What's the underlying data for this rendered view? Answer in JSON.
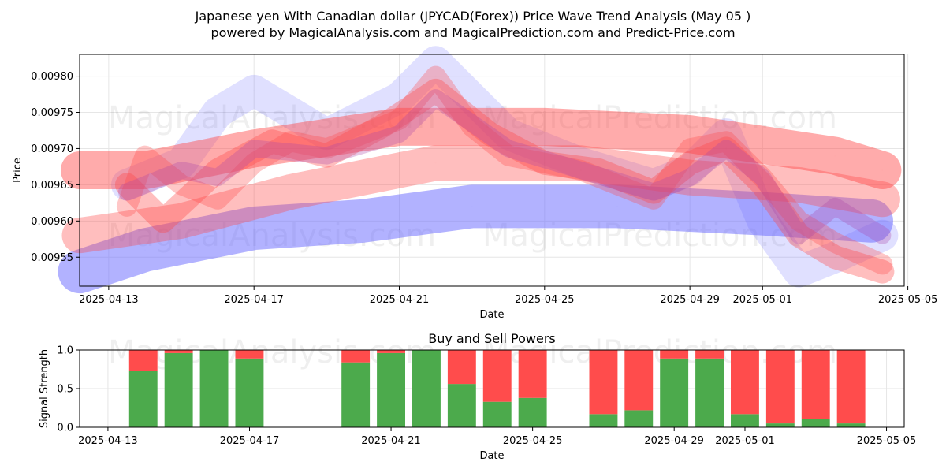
{
  "chart_data": [
    {
      "type": "line",
      "title": "Japanese yen With Canadian dollar (JPYCAD(Forex)) Price Wave Trend Analysis (May 05 )",
      "subtitle": "powered by MagicalAnalysis.com and MagicalPrediction.com and Predict-Price.com",
      "xlabel": "Date",
      "ylabel": "Price",
      "xlim": [
        -0.8,
        21.9
      ],
      "ylim": [
        0.00951,
        0.00983
      ],
      "x_ticks": [
        {
          "pos": 0,
          "label": "2025-04-13"
        },
        {
          "pos": 4,
          "label": "2025-04-17"
        },
        {
          "pos": 8,
          "label": "2025-04-21"
        },
        {
          "pos": 12,
          "label": "2025-04-25"
        },
        {
          "pos": 16,
          "label": "2025-04-29"
        },
        {
          "pos": 18,
          "label": "2025-05-01"
        },
        {
          "pos": 22,
          "label": "2025-05-05"
        }
      ],
      "y_ticks": [
        {
          "value": 0.00955,
          "label": "0.00955"
        },
        {
          "value": 0.0096,
          "label": "0.00960"
        },
        {
          "value": 0.00965,
          "label": "0.00965"
        },
        {
          "value": 0.0097,
          "label": "0.00970"
        },
        {
          "value": 0.00975,
          "label": "0.00975"
        },
        {
          "value": 0.0098,
          "label": "0.00980"
        }
      ],
      "grid": true,
      "watermarks": [
        "MagicalAnalysis.com",
        "MagicalPrediction.com",
        "MagicalAnalysis.com",
        "MagicalPrediction.com"
      ],
      "series": [
        {
          "name": "blue-band-lower",
          "color": "#6666ff",
          "opacity": 0.5,
          "x": [
            -0.8,
            1,
            4,
            7,
            10,
            14,
            18,
            21
          ],
          "values": [
            0.00953,
            0.00956,
            0.00959,
            0.0096,
            0.00962,
            0.00962,
            0.00961,
            0.0096
          ]
        },
        {
          "name": "blue-wave",
          "color": "#6666ff",
          "opacity": 0.2,
          "x": [
            0.5,
            2,
            3,
            4,
            6,
            8,
            9,
            11,
            13,
            15,
            16,
            17,
            18,
            19,
            20,
            21.3
          ],
          "values": [
            0.00965,
            0.00968,
            0.00975,
            0.00978,
            0.00972,
            0.00977,
            0.00982,
            0.00972,
            0.00968,
            0.00965,
            0.00967,
            0.00972,
            0.0096,
            0.00953,
            0.00955,
            0.00958
          ]
        },
        {
          "name": "red-band-1",
          "color": "#ff4444",
          "opacity": 0.45,
          "x": [
            -0.8,
            1,
            4,
            8,
            12,
            16,
            20,
            21.3
          ],
          "values": [
            0.00967,
            0.00967,
            0.0097,
            0.00973,
            0.00973,
            0.00972,
            0.00969,
            0.00967
          ]
        },
        {
          "name": "red-band-2",
          "color": "#ff4444",
          "opacity": 0.35,
          "x": [
            -0.8,
            2,
            5,
            9,
            13,
            16,
            19,
            21.3
          ],
          "values": [
            0.00958,
            0.0096,
            0.00964,
            0.00968,
            0.00968,
            0.00966,
            0.00965,
            0.00963
          ]
        },
        {
          "name": "red-wave-1",
          "color": "#ff4444",
          "opacity": 0.35,
          "x": [
            0.5,
            1.5,
            3,
            4.5,
            6,
            7.5,
            9,
            10.5,
            12,
            13.5,
            15,
            16,
            17,
            18,
            19,
            20,
            21.3
          ],
          "values": [
            0.00965,
            0.0096,
            0.00967,
            0.00971,
            0.00969,
            0.00973,
            0.00978,
            0.00972,
            0.00968,
            0.00967,
            0.00964,
            0.00968,
            0.0097,
            0.00965,
            0.00958,
            0.00955,
            0.00953
          ]
        },
        {
          "name": "red-wave-2",
          "color": "#ff4444",
          "opacity": 0.3,
          "x": [
            0.5,
            1,
            2,
            3,
            4,
            5,
            6,
            7,
            8,
            9,
            10,
            11,
            12,
            13,
            14,
            15,
            16,
            17,
            18,
            19,
            20,
            21.3
          ],
          "values": [
            0.00962,
            0.00969,
            0.00965,
            0.00963,
            0.00968,
            0.00971,
            0.0097,
            0.00972,
            0.00974,
            0.0098,
            0.00973,
            0.00969,
            0.00968,
            0.00967,
            0.00965,
            0.00963,
            0.0097,
            0.00971,
            0.00966,
            0.0096,
            0.00957,
            0.00954
          ]
        },
        {
          "name": "purple-wave",
          "color": "#aa44aa",
          "opacity": 0.3,
          "x": [
            0.5,
            2,
            3,
            4,
            6,
            8,
            9,
            11,
            13,
            15,
            16,
            17,
            18,
            19,
            20,
            21.3
          ],
          "values": [
            0.00964,
            0.00967,
            0.00966,
            0.0097,
            0.00969,
            0.00972,
            0.00977,
            0.0097,
            0.00967,
            0.00964,
            0.00966,
            0.0097,
            0.00966,
            0.00958,
            0.00962,
            0.00958
          ]
        }
      ]
    },
    {
      "type": "bar",
      "title": "Buy and Sell Powers",
      "xlabel": "Date",
      "ylabel": "Signal Strength",
      "xlim": [
        -0.8,
        22.5
      ],
      "ylim": [
        0,
        1
      ],
      "y_ticks": [
        {
          "value": 0,
          "label": "0.0"
        },
        {
          "value": 0.5,
          "label": "0.5"
        },
        {
          "value": 1,
          "label": "1.0"
        }
      ],
      "x_ticks": [
        {
          "pos": 0,
          "label": "2025-04-13"
        },
        {
          "pos": 4,
          "label": "2025-04-17"
        },
        {
          "pos": 8,
          "label": "2025-04-21"
        },
        {
          "pos": 12,
          "label": "2025-04-25"
        },
        {
          "pos": 16,
          "label": "2025-04-29"
        },
        {
          "pos": 18,
          "label": "2025-05-01"
        },
        {
          "pos": 22,
          "label": "2025-05-05"
        }
      ],
      "grid": true,
      "colors": {
        "buy": "#4caa4c",
        "sell": "#ff4c4c"
      },
      "watermarks": [
        "MagicalAnalysis.com",
        "MagicalPrediction.com"
      ],
      "categories": [
        "2025-04-14",
        "2025-04-15",
        "2025-04-16",
        "2025-04-17",
        "2025-04-20",
        "2025-04-21",
        "2025-04-22",
        "2025-04-23",
        "2025-04-24",
        "2025-04-25",
        "2025-04-27",
        "2025-04-28",
        "2025-04-29",
        "2025-04-30",
        "2025-05-01",
        "2025-05-02",
        "2025-05-03",
        "2025-05-04"
      ],
      "x_positions": [
        1,
        2,
        3,
        4,
        7,
        8,
        9,
        10,
        11,
        12,
        14,
        15,
        16,
        17,
        18,
        19,
        20,
        21
      ],
      "series": [
        {
          "name": "Buy",
          "values": [
            0.73,
            0.96,
            1.0,
            0.89,
            0.84,
            0.96,
            1.0,
            0.56,
            0.33,
            0.38,
            0.17,
            0.22,
            0.89,
            0.89,
            0.17,
            0.05,
            0.11,
            0.05
          ]
        },
        {
          "name": "Sell",
          "values": [
            0.27,
            0.04,
            0.0,
            0.11,
            0.16,
            0.04,
            0.0,
            0.44,
            0.67,
            0.62,
            0.83,
            0.78,
            0.11,
            0.11,
            0.83,
            0.95,
            0.89,
            0.95
          ]
        }
      ]
    }
  ]
}
